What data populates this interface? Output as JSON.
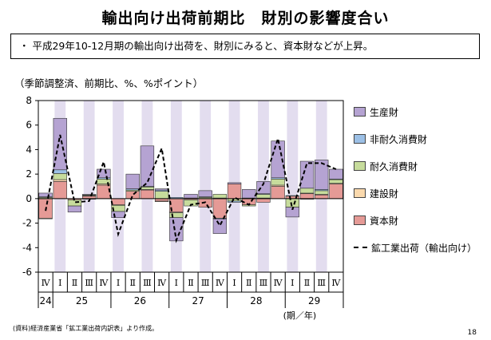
{
  "title": "輸出向け出荷前期比　財別の影響度合い",
  "summary": "・ 平成29年10-12月期の輸出向け出荷を、財別にみると、資本財などが上昇。",
  "source": "(資料)経済産業省「鉱工業出荷内訳表」より作成。",
  "page_number": "18",
  "chart_data": {
    "type": "bar",
    "stacked": true,
    "ylabel": "（季節調整済、前期比、%、%ポイント）",
    "ylim": [
      -6,
      8
    ],
    "yticks": [
      -6,
      -4,
      -2,
      0,
      2,
      4,
      6,
      8
    ],
    "categories": [
      "Ⅳ",
      "Ⅰ",
      "Ⅱ",
      "Ⅲ",
      "Ⅳ",
      "Ⅰ",
      "Ⅱ",
      "Ⅲ",
      "Ⅳ",
      "Ⅰ",
      "Ⅱ",
      "Ⅲ",
      "Ⅳ",
      "Ⅰ",
      "Ⅱ",
      "Ⅲ",
      "Ⅳ",
      "Ⅰ",
      "Ⅱ",
      "Ⅲ",
      "Ⅳ"
    ],
    "year_labels": [
      {
        "label": "24",
        "start": 0,
        "end": 0
      },
      {
        "label": "25",
        "start": 1,
        "end": 4
      },
      {
        "label": "26",
        "start": 5,
        "end": 8
      },
      {
        "label": "27",
        "start": 9,
        "end": 12
      },
      {
        "label": "28",
        "start": 13,
        "end": 16
      },
      {
        "label": "29",
        "start": 17,
        "end": 20
      }
    ],
    "x_unit_label": "(期／年)",
    "shaded_columns": [
      1,
      3,
      5,
      7,
      9,
      11,
      13,
      15,
      17,
      19
    ],
    "series": [
      {
        "name": "資本財",
        "color": "#e59a96",
        "values": [
          -1.6,
          1.4,
          -0.1,
          0.2,
          1.1,
          -0.5,
          0.6,
          0.7,
          -0.2,
          -1.1,
          -0.1,
          -0.7,
          -1.6,
          1.2,
          -0.5,
          -0.3,
          1.0,
          0.2,
          0.4,
          0.3,
          1.2
        ]
      },
      {
        "name": "建設財",
        "color": "#fad9ad",
        "values": [
          -0.05,
          0.15,
          0.0,
          0.05,
          0.1,
          -0.05,
          0.0,
          0.05,
          -0.05,
          -0.05,
          0.0,
          0.0,
          0.05,
          0.0,
          0.0,
          0.05,
          0.1,
          0.0,
          0.05,
          0.05,
          0.05
        ]
      },
      {
        "name": "耐久消費財",
        "color": "#c7dc9c",
        "values": [
          0.1,
          0.5,
          -0.5,
          0.05,
          0.4,
          -0.5,
          0.1,
          0.2,
          0.6,
          -0.4,
          -0.5,
          0.1,
          0.3,
          -0.2,
          -0.1,
          0.3,
          0.5,
          -0.7,
          0.4,
          0.3,
          0.3
        ]
      },
      {
        "name": "非耐久消費財",
        "color": "#9cc0e6",
        "values": [
          0.05,
          0.3,
          0.0,
          -0.05,
          0.1,
          0.0,
          0.1,
          0.05,
          0.1,
          0.1,
          0.05,
          0.05,
          -0.05,
          -0.1,
          0.05,
          0.05,
          0.1,
          0.05,
          -0.05,
          0.1,
          0.05
        ]
      },
      {
        "name": "生産財",
        "color": "#b5a3d2",
        "values": [
          0.3,
          4.2,
          -0.5,
          0.05,
          0.7,
          -0.5,
          1.2,
          3.3,
          0.1,
          -1.9,
          0.3,
          0.5,
          -1.2,
          0.1,
          0.7,
          1.0,
          3.0,
          -0.8,
          2.2,
          2.4,
          0.8
        ]
      },
      {
        "name": "鉱工業出荷（輸出向け）",
        "type": "line",
        "color": "#000000",
        "values": [
          -1.0,
          5.2,
          -0.3,
          -0.2,
          3.0,
          -2.9,
          0.3,
          1.3,
          4.1,
          -3.4,
          -0.5,
          -0.3,
          -2.2,
          0.1,
          -0.5,
          1.2,
          4.9,
          -0.9,
          2.9,
          2.9,
          2.4
        ]
      }
    ],
    "grid": false,
    "legend_position": "right"
  }
}
